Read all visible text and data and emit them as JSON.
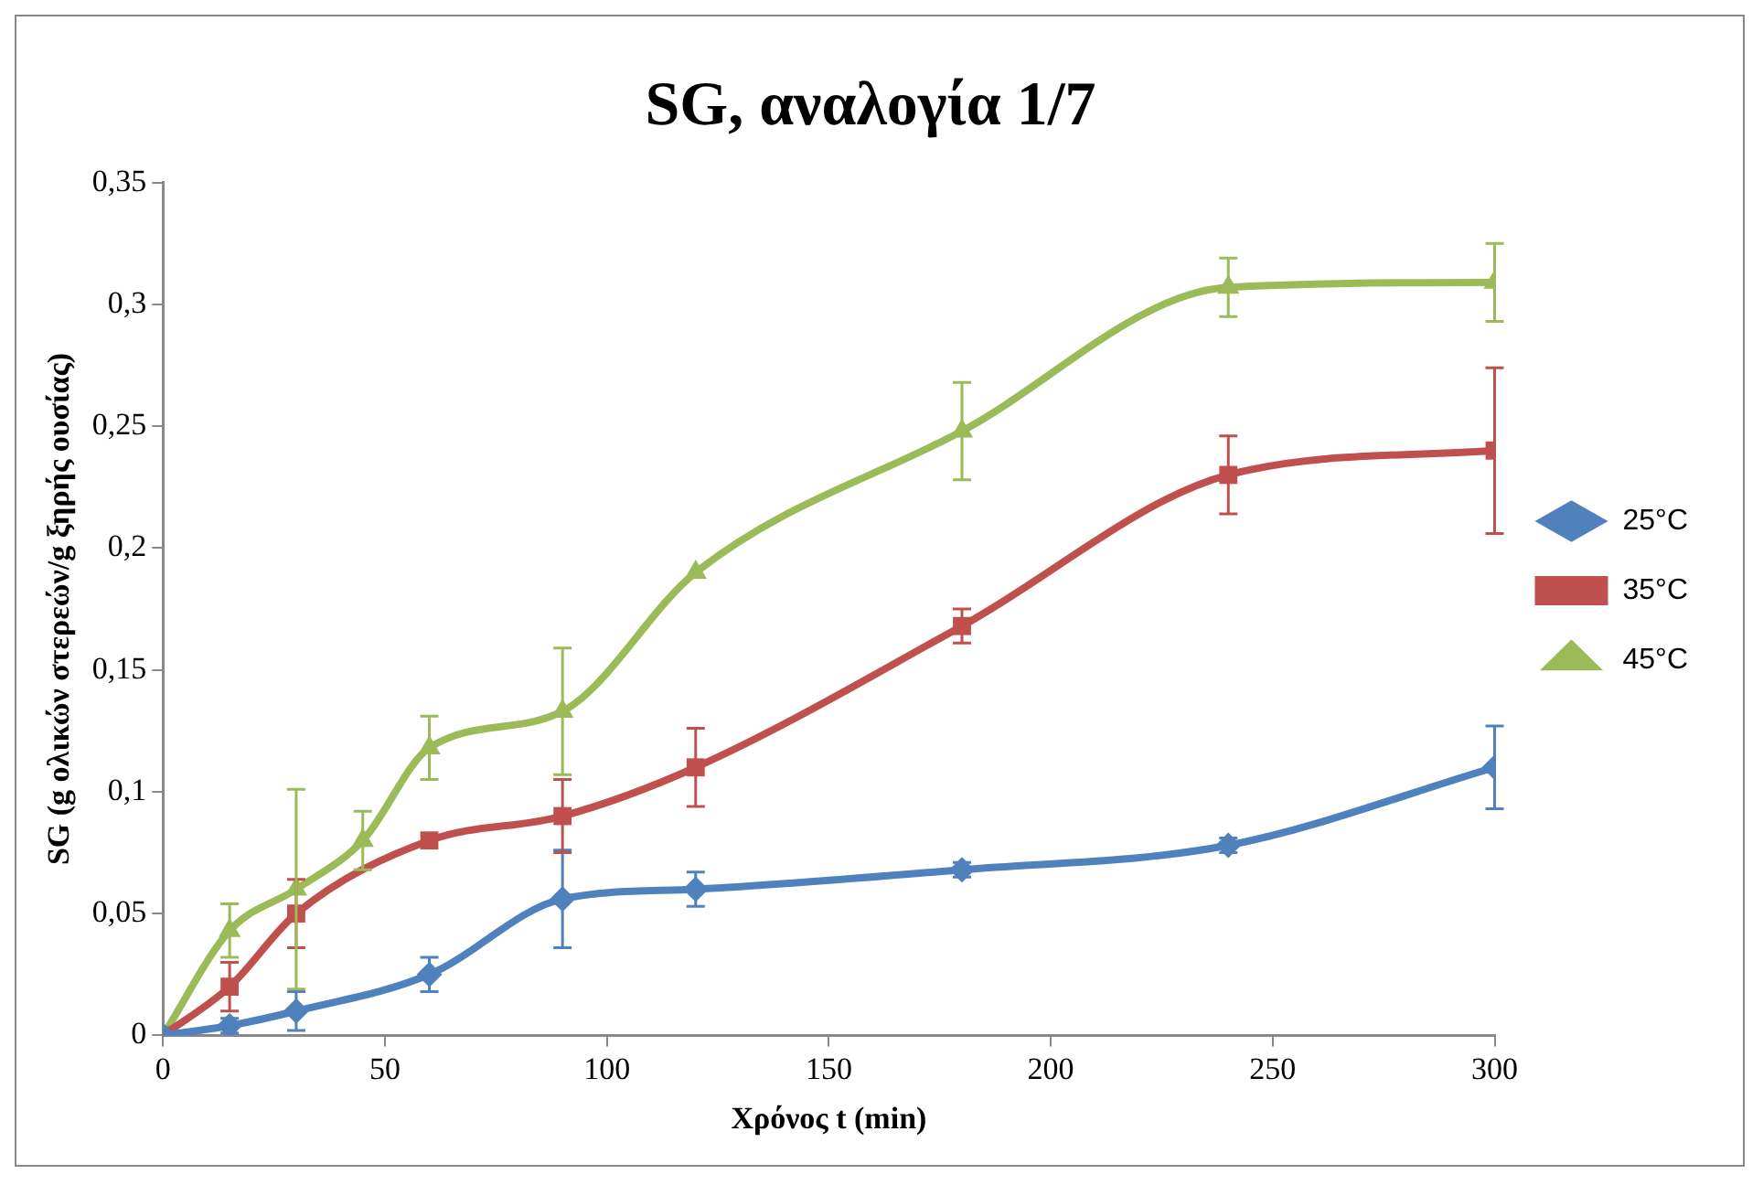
{
  "chart_data": {
    "type": "line",
    "title": "SG, αναλογία 1/7",
    "xlabel": "Χρόνος t (min)",
    "ylabel": "SG (g ολικών στερεών/g ξηρής ουσίας)",
    "x": [
      0,
      15,
      30,
      45,
      60,
      90,
      120,
      180,
      240,
      300
    ],
    "series": [
      {
        "name": "25°C",
        "color": "#4f81bd",
        "marker": "diamond",
        "values": [
          0,
          0.004,
          0.01,
          null,
          0.025,
          0.056,
          0.06,
          0.068,
          0.078,
          0.11
        ],
        "errors": [
          null,
          0.003,
          0.008,
          null,
          0.007,
          0.02,
          0.007,
          0.003,
          0.003,
          0.017
        ]
      },
      {
        "name": "35°C",
        "color": "#c0504d",
        "marker": "square",
        "values": [
          0,
          0.02,
          0.05,
          null,
          0.08,
          0.09,
          0.11,
          0.168,
          0.23,
          0.24
        ],
        "errors": [
          null,
          0.01,
          0.014,
          null,
          null,
          0.015,
          0.016,
          0.007,
          0.016,
          0.034
        ]
      },
      {
        "name": "45°C",
        "color": "#9bbb59",
        "marker": "triangle",
        "values": [
          0,
          0.043,
          0.06,
          0.08,
          0.118,
          0.133,
          0.19,
          0.248,
          0.307,
          0.309
        ],
        "errors": [
          null,
          0.011,
          0.041,
          0.012,
          0.013,
          0.026,
          null,
          0.02,
          0.012,
          0.016
        ]
      }
    ],
    "xlim": [
      0,
      300
    ],
    "xticks": [
      0,
      50,
      100,
      150,
      200,
      250,
      300
    ],
    "ylim": [
      0,
      0.35
    ],
    "yticks": [
      {
        "value": 0,
        "label": "0"
      },
      {
        "value": 0.05,
        "label": "0,05"
      },
      {
        "value": 0.1,
        "label": "0,1"
      },
      {
        "value": 0.15,
        "label": "0,15"
      },
      {
        "value": 0.2,
        "label": "0,2"
      },
      {
        "value": 0.25,
        "label": "0,25"
      },
      {
        "value": 0.3,
        "label": "0,3"
      },
      {
        "value": 0.35,
        "label": "0,35"
      }
    ],
    "grid": false,
    "legend": "right",
    "line_style": "solid"
  }
}
